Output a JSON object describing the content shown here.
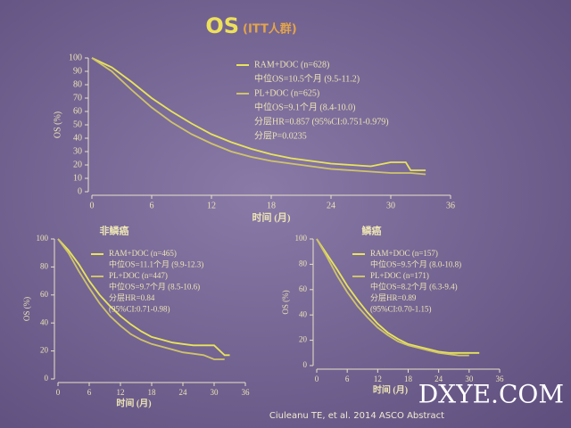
{
  "slide": {
    "title": "OS",
    "subtitle": "(ITT人群)",
    "citation": "Ciuleanu TE, et al. 2014 ASCO Abstract",
    "watermark": "DXYE.COM"
  },
  "chart_data": [
    {
      "type": "line",
      "ylabel": "OS (%)",
      "xlabel": "时间 (月)",
      "xlim": [
        0,
        36
      ],
      "xticks": [
        0,
        6,
        12,
        18,
        24,
        30,
        36
      ],
      "ylim": [
        0,
        100
      ],
      "yticks": [
        0,
        10,
        20,
        30,
        40,
        50,
        60,
        70,
        80,
        90,
        100
      ],
      "series": [
        {
          "name": "RAM+DOC (n=628)",
          "median": "中位OS=10.5个月 (9.5-11.2)",
          "color": "#e8e45a",
          "x": [
            0,
            2,
            4,
            6,
            8,
            10,
            12,
            14,
            16,
            18,
            20,
            22,
            24,
            26,
            28,
            30,
            31.5,
            32,
            33.5
          ],
          "values": [
            100,
            93,
            82,
            70,
            60,
            51,
            43,
            37,
            32,
            28,
            25,
            23,
            21,
            20,
            19,
            22,
            22,
            16,
            16
          ]
        },
        {
          "name": "PL+DOC (n=625)",
          "median": "中位OS=9.1个月 (8.4-10.0)",
          "color": "#cfc46a",
          "x": [
            0,
            2,
            4,
            6,
            8,
            10,
            12,
            14,
            16,
            18,
            20,
            22,
            24,
            26,
            28,
            30,
            32,
            33.5
          ],
          "values": [
            100,
            90,
            76,
            63,
            52,
            43,
            36,
            30,
            26,
            23,
            21,
            19,
            17,
            16,
            15,
            14,
            14,
            13
          ]
        }
      ],
      "annotations": [
        "分层HR=0.857 (95%CI:0.751-0.979)",
        "分层P=0.0235"
      ]
    },
    {
      "type": "line",
      "title": "非鳞癌",
      "ylabel": "OS (%)",
      "xlabel": "时间 (月)",
      "xlim": [
        0,
        36
      ],
      "xticks": [
        0,
        6,
        12,
        18,
        24,
        30,
        36
      ],
      "ylim": [
        0,
        100
      ],
      "yticks": [
        0,
        20,
        40,
        60,
        80,
        100
      ],
      "series": [
        {
          "name": "RAM+DOC (n=465)",
          "median": "中位OS=11.1个月 (9.9-12.3)",
          "color": "#e8e45a",
          "x": [
            0,
            2,
            4,
            6,
            8,
            10,
            12,
            14,
            16,
            18,
            20,
            22,
            24,
            26,
            28,
            30,
            32,
            33
          ],
          "values": [
            100,
            92,
            82,
            70,
            60,
            52,
            45,
            39,
            34,
            30,
            28,
            26,
            25,
            24,
            24,
            24,
            17,
            17
          ]
        },
        {
          "name": "PL+DOC (n=447)",
          "median": "中位OS=9.7个月 (8.5-10.6)",
          "color": "#cfc46a",
          "x": [
            0,
            2,
            4,
            6,
            8,
            10,
            12,
            14,
            16,
            18,
            20,
            22,
            24,
            26,
            28,
            30,
            32
          ],
          "values": [
            100,
            90,
            77,
            65,
            54,
            45,
            38,
            32,
            28,
            25,
            23,
            21,
            19,
            18,
            17,
            14,
            14
          ]
        }
      ],
      "annotations": [
        "分层HR=0.84",
        "(95%CI:0.71-0.98)"
      ]
    },
    {
      "type": "line",
      "title": "鳞癌",
      "ylabel": "OS (%)",
      "xlabel": "时间 (月)",
      "xlim": [
        0,
        36
      ],
      "xticks": [
        0,
        6,
        12,
        18,
        24,
        30,
        36
      ],
      "ylim": [
        0,
        100
      ],
      "yticks": [
        0,
        20,
        40,
        60,
        80,
        100
      ],
      "series": [
        {
          "name": "RAM+DOC (n=157)",
          "median": "中位OS=9.5个月 (8.0-10.8)",
          "color": "#e8e45a",
          "x": [
            0,
            2,
            4,
            6,
            8,
            10,
            12,
            14,
            16,
            18,
            20,
            22,
            24,
            26,
            28,
            30,
            32
          ],
          "values": [
            100,
            88,
            76,
            63,
            52,
            42,
            33,
            26,
            21,
            17,
            15,
            13,
            11,
            10,
            10,
            10,
            10
          ]
        },
        {
          "name": "PL+DOC (n=171)",
          "median": "中位OS=8.2个月 (6.3-9.4)",
          "color": "#cfc46a",
          "x": [
            0,
            2,
            4,
            6,
            8,
            10,
            12,
            14,
            16,
            18,
            20,
            22,
            24,
            26,
            28,
            30
          ],
          "values": [
            100,
            86,
            71,
            58,
            47,
            38,
            30,
            24,
            19,
            16,
            14,
            12,
            10,
            9,
            8,
            8
          ]
        }
      ],
      "annotations": [
        "分层HR=0.89",
        "(95%CI:0.70-1.15)"
      ]
    }
  ]
}
